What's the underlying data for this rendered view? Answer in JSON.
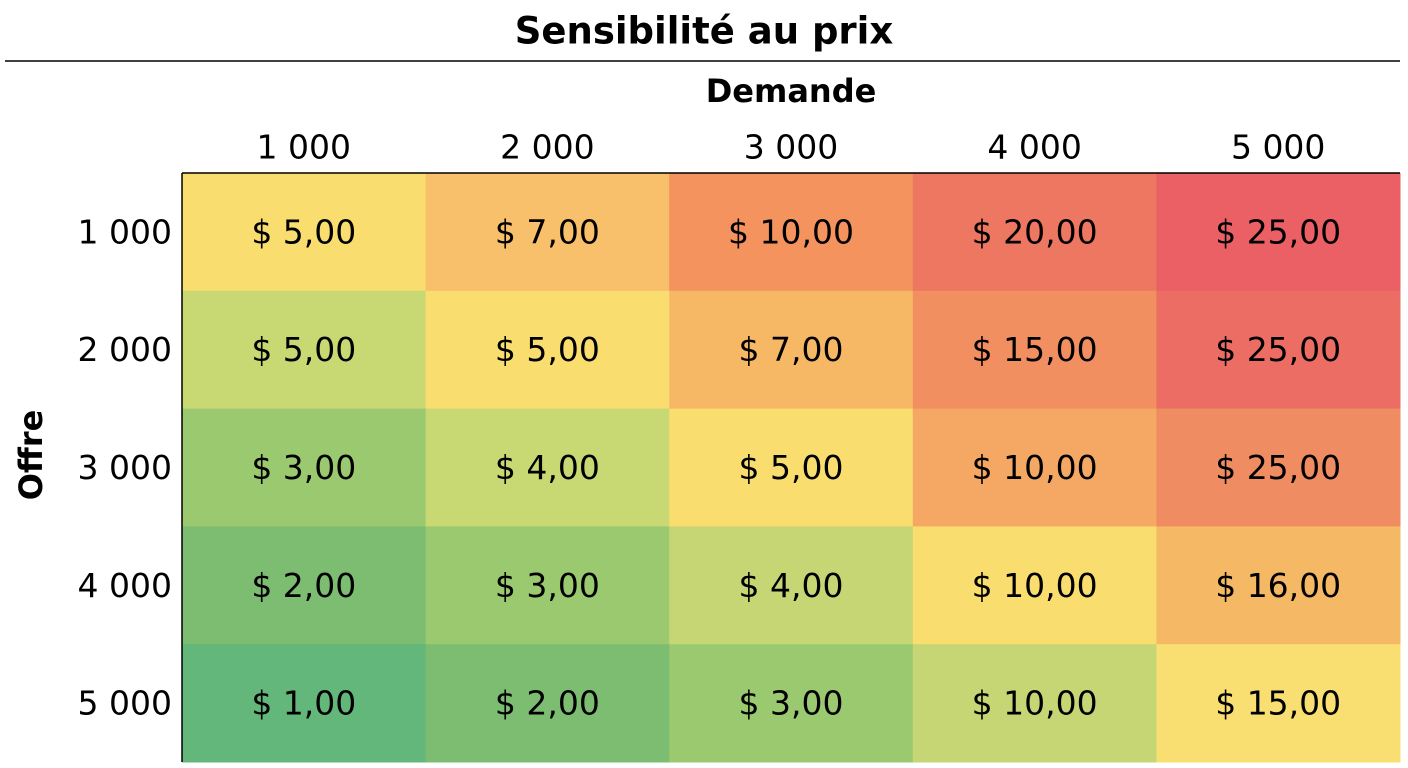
{
  "chart_data": {
    "type": "heatmap",
    "title": "Sensibilité au prix",
    "x_label": "Demande",
    "y_label": "Offre",
    "x_categories": [
      "1 000",
      "2 000",
      "3 000",
      "4 000",
      "5 000"
    ],
    "y_categories": [
      "1 000",
      "2 000",
      "3 000",
      "4 000",
      "5 000"
    ],
    "values": [
      [
        5,
        7,
        10,
        20,
        25
      ],
      [
        5,
        5,
        7,
        15,
        25
      ],
      [
        3,
        4,
        5,
        10,
        25
      ],
      [
        2,
        3,
        4,
        10,
        16
      ],
      [
        1,
        2,
        3,
        10,
        15
      ]
    ],
    "value_labels": [
      [
        "$ 5,00",
        "$ 7,00",
        "$ 10,00",
        "$ 20,00",
        "$ 25,00"
      ],
      [
        "$ 5,00",
        "$ 5,00",
        "$ 7,00",
        "$ 15,00",
        "$ 25,00"
      ],
      [
        "$ 3,00",
        "$ 4,00",
        "$ 5,00",
        "$ 10,00",
        "$ 25,00"
      ],
      [
        "$ 2,00",
        "$ 3,00",
        "$ 4,00",
        "$ 10,00",
        "$ 16,00"
      ],
      [
        "$ 1,00",
        "$ 2,00",
        "$ 3,00",
        "$ 10,00",
        "$ 15,00"
      ]
    ],
    "colors": [
      [
        "#f9dd6f",
        "#f8c06a",
        "#f4935e",
        "#ee7762",
        "#ea6065"
      ],
      [
        "#c8d873",
        "#f9dd6f",
        "#f7b866",
        "#f18f60",
        "#ec6d63"
      ],
      [
        "#9bc96f",
        "#c8d873",
        "#f9dd6f",
        "#f4a863",
        "#f08c61"
      ],
      [
        "#7cbd72",
        "#9bc96f",
        "#c6d674",
        "#f9dd6f",
        "#f5b864"
      ],
      [
        "#63b77a",
        "#7cbd72",
        "#9bc96f",
        "#c6d674",
        "#f9df71"
      ]
    ]
  }
}
